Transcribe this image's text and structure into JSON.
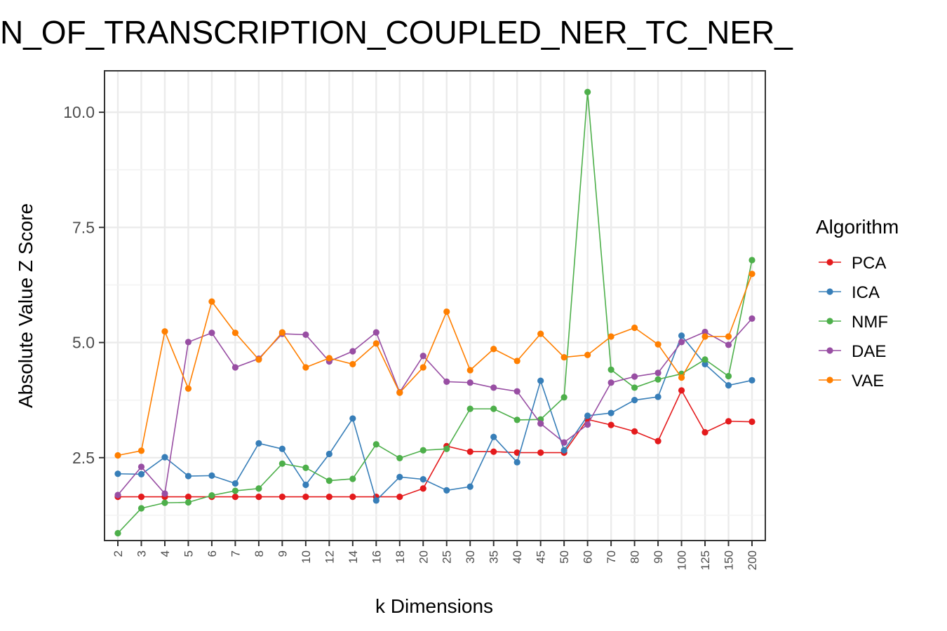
{
  "chart_data": {
    "type": "line",
    "title": "N_OF_TRANSCRIPTION_COUPLED_NER_TC_NER_",
    "xlabel": "k Dimensions",
    "ylabel": "Absolute Value Z Score",
    "categories": [
      "2",
      "3",
      "4",
      "5",
      "6",
      "7",
      "8",
      "9",
      "10",
      "12",
      "14",
      "16",
      "18",
      "20",
      "25",
      "30",
      "35",
      "40",
      "45",
      "50",
      "60",
      "70",
      "80",
      "90",
      "100",
      "125",
      "150",
      "200"
    ],
    "yticks": [
      2.5,
      5.0,
      7.5,
      10.0
    ],
    "ytick_labels": [
      "2.5",
      "5.0",
      "7.5",
      "10.0"
    ],
    "ylim": [
      0.7,
      10.9
    ],
    "grid": true,
    "legend": {
      "title": "Algorithm",
      "position": "right"
    },
    "series": [
      {
        "name": "PCA",
        "color": "#e41a1c",
        "values": [
          1.65,
          1.65,
          1.65,
          1.65,
          1.65,
          1.65,
          1.65,
          1.65,
          1.65,
          1.65,
          1.65,
          1.65,
          1.65,
          1.83,
          2.75,
          2.63,
          2.63,
          2.61,
          2.61,
          2.61,
          3.33,
          3.21,
          3.07,
          2.86,
          3.96,
          3.05,
          3.29,
          3.28
        ]
      },
      {
        "name": "ICA",
        "color": "#377eb8",
        "values": [
          2.15,
          2.14,
          2.51,
          2.1,
          2.11,
          1.94,
          2.81,
          2.69,
          1.91,
          2.58,
          3.35,
          1.57,
          2.08,
          2.03,
          1.79,
          1.87,
          2.95,
          2.4,
          4.17,
          2.66,
          3.41,
          3.47,
          3.75,
          3.82,
          5.15,
          4.53,
          4.07,
          4.18
        ]
      },
      {
        "name": "NMF",
        "color": "#4daf4a",
        "values": [
          0.86,
          1.4,
          1.52,
          1.53,
          1.68,
          1.78,
          1.83,
          2.37,
          2.28,
          2.0,
          2.04,
          2.79,
          2.49,
          2.66,
          2.69,
          3.56,
          3.56,
          3.32,
          3.33,
          3.81,
          10.44,
          4.41,
          4.02,
          4.2,
          4.32,
          4.63,
          4.27,
          6.79
        ]
      },
      {
        "name": "DAE",
        "color": "#984ea3",
        "values": [
          1.69,
          2.3,
          1.72,
          5.01,
          5.21,
          4.46,
          4.65,
          5.19,
          5.17,
          4.59,
          4.81,
          5.22,
          3.92,
          4.71,
          4.15,
          4.13,
          4.02,
          3.94,
          3.24,
          2.83,
          3.22,
          4.13,
          4.26,
          4.34,
          5.01,
          5.23,
          4.95,
          5.52
        ]
      },
      {
        "name": "VAE",
        "color": "#ff7f00",
        "values": [
          2.55,
          2.65,
          5.24,
          4.0,
          5.89,
          5.21,
          4.63,
          5.22,
          4.46,
          4.66,
          4.53,
          4.98,
          3.91,
          4.46,
          5.67,
          4.4,
          4.86,
          4.6,
          5.19,
          4.68,
          4.73,
          5.13,
          5.32,
          4.96,
          4.24,
          5.13,
          5.13,
          6.49
        ]
      }
    ]
  }
}
